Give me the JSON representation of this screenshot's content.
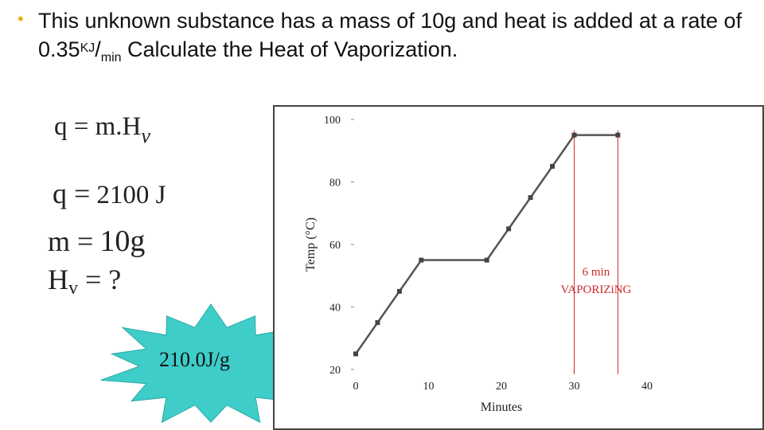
{
  "question": {
    "part1": "This unknown substance has a mass of 10g and heat is added at a rate of 0.35",
    "sup": "KJ",
    "slash": "/",
    "sub": "min",
    "part2": " Calculate the Heat of Vaporization."
  },
  "formula": {
    "q": "q = m.H",
    "sub": "v"
  },
  "given": {
    "q_label": "q =",
    "q_value": "2100 J",
    "m_label": "m =",
    "m_value": "10g",
    "h_label": "H",
    "h_sub": "v",
    "h_rest": " = ?"
  },
  "answer": {
    "text": "210.0J/g",
    "color": "#3ecdc8"
  },
  "chart_data": {
    "type": "line",
    "ylabel": "Temp (°C)",
    "xlabel": "Minutes",
    "xlim": [
      0,
      40
    ],
    "ylim": [
      20,
      100
    ],
    "x_ticks": [
      "0",
      "10",
      "20",
      "30",
      "40"
    ],
    "y_ticks": [
      "20",
      "40",
      "60",
      "80",
      "100"
    ],
    "points": [
      [
        0,
        25
      ],
      [
        3,
        35
      ],
      [
        6,
        45
      ],
      [
        9,
        55
      ],
      [
        18,
        55
      ],
      [
        21,
        65
      ],
      [
        24,
        75
      ],
      [
        27,
        85
      ],
      [
        30,
        95
      ],
      [
        36,
        95
      ]
    ],
    "markers": [
      30,
      36
    ],
    "annotation": {
      "line1": "6 min",
      "line2": "VAPORIZiNG"
    },
    "line_color": "#555555",
    "marker_color": "#cc2a2a"
  }
}
